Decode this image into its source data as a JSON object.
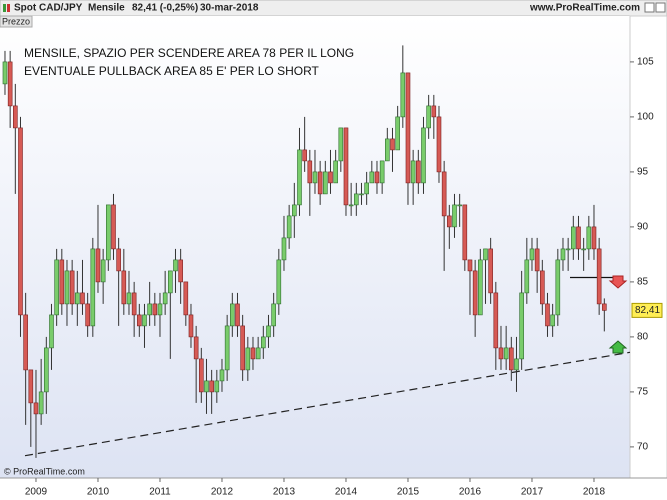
{
  "header": {
    "instrument": "Spot CAD/JPY",
    "period": "Mensile",
    "quote": "82,41 (-0,25%)",
    "date": "30-mar-2018",
    "site": "www.ProRealTime.com"
  },
  "panel_label": "Prezzo",
  "copyright": "© ProRealTime.com",
  "chart_data": {
    "type": "candlestick",
    "annotation": [
      "MENSILE, SPAZIO PER SCENDERE AREA 78 PER IL LONG",
      "EVENTUALE PULLBACK AREA 85 E' PER LO SHORT"
    ],
    "up_color": "#79cc6b",
    "down_color": "#d65a55",
    "ylim": [
      67.9,
      107.9
    ],
    "yticks": [
      70,
      75,
      80,
      85,
      90,
      95,
      100,
      105
    ],
    "categories": [
      null,
      null,
      null,
      null,
      null,
      null,
      "2009",
      null,
      null,
      null,
      null,
      null,
      null,
      null,
      null,
      null,
      null,
      null,
      "2010",
      null,
      null,
      null,
      null,
      null,
      null,
      null,
      null,
      null,
      null,
      null,
      "2011",
      null,
      null,
      null,
      null,
      null,
      null,
      null,
      null,
      null,
      null,
      null,
      "2012",
      null,
      null,
      null,
      null,
      null,
      null,
      null,
      null,
      null,
      null,
      null,
      "2013",
      null,
      null,
      null,
      null,
      null,
      null,
      null,
      null,
      null,
      null,
      null,
      "2014",
      null,
      null,
      null,
      null,
      null,
      null,
      null,
      null,
      null,
      null,
      null,
      "2015",
      null,
      null,
      null,
      null,
      null,
      null,
      null,
      null,
      null,
      null,
      null,
      "2016",
      null,
      null,
      null,
      null,
      null,
      null,
      null,
      null,
      null,
      null,
      null,
      "2017",
      null,
      null,
      null,
      null,
      null,
      null,
      null,
      null,
      null,
      null,
      null,
      "2018",
      null,
      null
    ],
    "open": [
      103,
      105,
      101,
      99,
      82,
      77,
      74,
      73,
      75,
      79,
      82,
      87,
      83,
      86,
      83,
      84,
      83,
      81,
      88,
      85,
      87,
      92,
      88,
      86,
      83,
      84,
      82,
      81,
      82,
      83,
      82,
      83,
      84,
      86,
      87,
      85,
      82,
      80,
      78,
      75,
      76,
      75,
      76,
      77,
      81,
      83,
      81,
      77,
      79,
      78,
      79,
      80,
      81,
      83,
      87,
      89,
      91,
      92,
      97,
      96,
      94,
      95,
      93,
      95,
      94,
      96,
      99,
      92,
      92,
      93,
      93,
      94,
      95,
      94,
      96,
      98,
      97,
      100,
      104,
      94,
      96,
      94,
      99,
      101,
      100,
      95,
      91,
      90,
      92,
      92,
      87,
      86,
      82,
      87,
      88,
      84,
      79,
      78,
      79,
      77,
      78,
      84,
      87,
      88,
      86,
      83,
      81,
      82,
      87,
      88,
      88,
      90,
      88,
      88,
      90,
      88,
      83
    ],
    "high": [
      106,
      106,
      103,
      100,
      84,
      77,
      77,
      78,
      80,
      83,
      88,
      88,
      87,
      87,
      86,
      87,
      84,
      89,
      92,
      88,
      92,
      93,
      89,
      88,
      86,
      85,
      83,
      83,
      85,
      84,
      84,
      86,
      86,
      88,
      88,
      85,
      83,
      81,
      79,
      78,
      77,
      77,
      78,
      82,
      84,
      84,
      82,
      80,
      80,
      80,
      81,
      82,
      84,
      88,
      91,
      92,
      94,
      99,
      100,
      97,
      97,
      96,
      96,
      97,
      97,
      99,
      99,
      94,
      94,
      94,
      95,
      96,
      96,
      96,
      99,
      99,
      101,
      106.5,
      104,
      97,
      97,
      100,
      102,
      102,
      101,
      96,
      92,
      93,
      93,
      92,
      87,
      87,
      88,
      88,
      89,
      85,
      81,
      81,
      80,
      80,
      86,
      89,
      89,
      89,
      87,
      84,
      83,
      88,
      89,
      89,
      91,
      91,
      89,
      91,
      92,
      89,
      83.5
    ],
    "low": [
      102,
      99,
      93,
      80,
      72,
      70,
      69,
      72,
      73,
      77,
      81,
      82,
      81,
      82,
      81,
      82,
      80,
      80,
      84,
      83,
      86,
      87,
      81,
      82,
      82,
      80,
      80,
      79,
      81,
      81,
      80,
      82,
      78,
      84,
      83,
      81,
      79,
      74,
      74,
      73,
      73,
      74,
      75,
      76,
      80,
      80,
      76,
      76,
      77,
      78,
      78,
      79,
      80,
      82,
      86,
      88,
      89,
      91,
      95,
      91,
      93,
      92,
      93,
      93,
      94,
      95,
      91,
      91,
      91,
      92,
      92,
      94,
      93,
      93,
      96,
      95,
      97,
      99,
      92,
      92,
      93,
      93,
      98,
      98,
      94,
      86,
      88,
      89,
      90,
      86,
      82,
      80,
      82,
      83,
      83,
      77,
      77,
      77,
      76,
      75,
      77,
      83,
      86,
      84,
      82,
      80,
      80,
      81,
      86,
      86,
      87,
      87,
      86,
      87,
      87,
      82,
      80.5
    ],
    "close": [
      105,
      101,
      99,
      82,
      77,
      74,
      73,
      75,
      79,
      82,
      87,
      83,
      86,
      83,
      84,
      83,
      81,
      88,
      85,
      87,
      92,
      88,
      86,
      83,
      84,
      82,
      81,
      82,
      83,
      82,
      83,
      84,
      86,
      87,
      85,
      82,
      80,
      78,
      75,
      76,
      75,
      76,
      77,
      81,
      83,
      81,
      77,
      79,
      78,
      79,
      80,
      81,
      83,
      87,
      89,
      91,
      92,
      97,
      96,
      94,
      95,
      93,
      95,
      94,
      96,
      99,
      92,
      92,
      93,
      93,
      94,
      95,
      94,
      96,
      98,
      97,
      100,
      104,
      94,
      96,
      94,
      99,
      101,
      100,
      95,
      91,
      90,
      92,
      92,
      87,
      86,
      82,
      87,
      88,
      84,
      79,
      78,
      79,
      77,
      78,
      84,
      87,
      88,
      86,
      83,
      81,
      82,
      87,
      88,
      88,
      90,
      88,
      88,
      90,
      88,
      83,
      82.41
    ],
    "last_price": 82.41,
    "last_price_label": "82,41",
    "level_line": 85.4,
    "trend_line": [
      69.2,
      78.6
    ]
  }
}
